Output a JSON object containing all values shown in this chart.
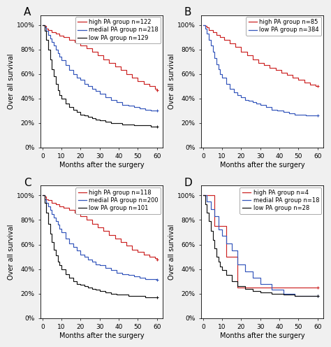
{
  "panels": {
    "A": {
      "label": "A",
      "groups": [
        {
          "name": "high PA group n=122",
          "color": "#cc2222",
          "times": [
            0,
            1,
            2,
            3,
            5,
            7,
            9,
            11,
            14,
            17,
            20,
            23,
            26,
            29,
            32,
            35,
            38,
            41,
            44,
            47,
            50,
            53,
            56,
            59,
            60
          ],
          "survival": [
            1.0,
            0.99,
            0.97,
            0.96,
            0.94,
            0.93,
            0.91,
            0.9,
            0.88,
            0.86,
            0.83,
            0.81,
            0.78,
            0.75,
            0.72,
            0.69,
            0.66,
            0.63,
            0.6,
            0.57,
            0.54,
            0.52,
            0.5,
            0.48,
            0.47
          ]
        },
        {
          "name": "medial PA group n=218",
          "color": "#3355bb",
          "times": [
            0,
            1,
            2,
            3,
            4,
            5,
            6,
            7,
            8,
            9,
            10,
            12,
            14,
            16,
            18,
            20,
            22,
            24,
            26,
            28,
            30,
            33,
            36,
            39,
            42,
            45,
            48,
            51,
            54,
            57,
            60
          ],
          "survival": [
            1.0,
            0.98,
            0.95,
            0.92,
            0.89,
            0.86,
            0.83,
            0.8,
            0.77,
            0.74,
            0.71,
            0.67,
            0.63,
            0.6,
            0.57,
            0.55,
            0.52,
            0.5,
            0.48,
            0.46,
            0.44,
            0.41,
            0.39,
            0.37,
            0.35,
            0.34,
            0.33,
            0.32,
            0.31,
            0.3,
            0.3
          ]
        },
        {
          "name": "low PA group n=129",
          "color": "#111111",
          "times": [
            0,
            1,
            2,
            3,
            4,
            5,
            6,
            7,
            8,
            9,
            10,
            12,
            14,
            16,
            18,
            20,
            22,
            24,
            26,
            28,
            30,
            33,
            36,
            39,
            42,
            45,
            48,
            51,
            54,
            57,
            60
          ],
          "survival": [
            1.0,
            0.95,
            0.88,
            0.8,
            0.72,
            0.64,
            0.58,
            0.52,
            0.47,
            0.43,
            0.4,
            0.36,
            0.33,
            0.31,
            0.29,
            0.27,
            0.26,
            0.25,
            0.24,
            0.23,
            0.22,
            0.21,
            0.2,
            0.2,
            0.19,
            0.19,
            0.18,
            0.18,
            0.18,
            0.17,
            0.17
          ]
        }
      ],
      "ytick_labels": [
        "0%",
        "20%",
        "40%",
        "60%",
        "80%",
        "100%"
      ],
      "yticks": [
        0,
        20,
        40,
        60,
        80,
        100
      ],
      "ylim": [
        0,
        108
      ],
      "xlim": [
        -1,
        63
      ],
      "legend_loc": "upper right"
    },
    "B": {
      "label": "B",
      "groups": [
        {
          "name": "high PA group n=85",
          "color": "#cc2222",
          "times": [
            0,
            1,
            2,
            3,
            5,
            7,
            9,
            11,
            14,
            17,
            20,
            23,
            26,
            29,
            32,
            35,
            38,
            41,
            44,
            47,
            50,
            53,
            56,
            59,
            60
          ],
          "survival": [
            1.0,
            0.99,
            0.98,
            0.96,
            0.94,
            0.92,
            0.9,
            0.88,
            0.85,
            0.82,
            0.78,
            0.75,
            0.72,
            0.69,
            0.67,
            0.65,
            0.63,
            0.61,
            0.59,
            0.57,
            0.55,
            0.53,
            0.51,
            0.5,
            0.5
          ]
        },
        {
          "name": "low PA group n=384",
          "color": "#3355bb",
          "times": [
            0,
            1,
            2,
            3,
            4,
            5,
            6,
            7,
            8,
            9,
            10,
            12,
            14,
            16,
            18,
            20,
            22,
            24,
            26,
            28,
            30,
            33,
            36,
            39,
            42,
            45,
            48,
            51,
            54,
            57,
            60
          ],
          "survival": [
            1.0,
            0.97,
            0.93,
            0.88,
            0.83,
            0.78,
            0.73,
            0.68,
            0.64,
            0.6,
            0.57,
            0.52,
            0.48,
            0.45,
            0.43,
            0.41,
            0.39,
            0.38,
            0.37,
            0.36,
            0.35,
            0.33,
            0.31,
            0.3,
            0.29,
            0.28,
            0.27,
            0.27,
            0.26,
            0.26,
            0.26
          ]
        }
      ],
      "ytick_labels": [
        "0%",
        "20%",
        "40%",
        "60%",
        "80%",
        "100%"
      ],
      "yticks": [
        0,
        20,
        40,
        60,
        80,
        100
      ],
      "ylim": [
        0,
        108
      ],
      "xlim": [
        -1,
        63
      ],
      "legend_loc": "upper right"
    },
    "C": {
      "label": "C",
      "groups": [
        {
          "name": "high PA group n=118",
          "color": "#cc2222",
          "times": [
            0,
            1,
            2,
            3,
            5,
            7,
            9,
            11,
            14,
            17,
            20,
            23,
            26,
            29,
            32,
            35,
            38,
            41,
            44,
            47,
            50,
            53,
            56,
            59,
            60
          ],
          "survival": [
            1.0,
            0.99,
            0.97,
            0.96,
            0.94,
            0.93,
            0.91,
            0.9,
            0.88,
            0.86,
            0.83,
            0.8,
            0.77,
            0.74,
            0.71,
            0.68,
            0.65,
            0.62,
            0.59,
            0.56,
            0.54,
            0.52,
            0.5,
            0.49,
            0.48
          ]
        },
        {
          "name": "medial PA group n=200",
          "color": "#3355bb",
          "times": [
            0,
            1,
            2,
            3,
            4,
            5,
            6,
            7,
            8,
            9,
            10,
            12,
            14,
            16,
            18,
            20,
            22,
            24,
            26,
            28,
            30,
            33,
            36,
            39,
            42,
            45,
            48,
            51,
            54,
            57,
            60
          ],
          "survival": [
            1.0,
            0.97,
            0.94,
            0.91,
            0.88,
            0.85,
            0.82,
            0.79,
            0.76,
            0.73,
            0.7,
            0.65,
            0.61,
            0.58,
            0.55,
            0.52,
            0.5,
            0.48,
            0.46,
            0.44,
            0.43,
            0.41,
            0.39,
            0.37,
            0.36,
            0.35,
            0.34,
            0.33,
            0.32,
            0.32,
            0.31
          ]
        },
        {
          "name": "low PA group n=101",
          "color": "#111111",
          "times": [
            0,
            1,
            2,
            3,
            4,
            5,
            6,
            7,
            8,
            9,
            10,
            12,
            14,
            16,
            18,
            20,
            22,
            24,
            26,
            28,
            30,
            33,
            36,
            39,
            42,
            45,
            48,
            51,
            54,
            57,
            60
          ],
          "survival": [
            1.0,
            0.94,
            0.86,
            0.77,
            0.69,
            0.62,
            0.56,
            0.51,
            0.46,
            0.43,
            0.4,
            0.36,
            0.33,
            0.3,
            0.28,
            0.27,
            0.26,
            0.25,
            0.24,
            0.23,
            0.22,
            0.21,
            0.2,
            0.19,
            0.19,
            0.18,
            0.18,
            0.18,
            0.17,
            0.17,
            0.17
          ]
        }
      ],
      "ytick_labels": [
        "0%",
        "20%",
        "40%",
        "60%",
        "80%",
        "100%"
      ],
      "yticks": [
        0,
        20,
        40,
        60,
        80,
        100
      ],
      "ylim": [
        0,
        108
      ],
      "xlim": [
        -1,
        63
      ],
      "legend_loc": "upper right"
    },
    "D": {
      "label": "D",
      "groups": [
        {
          "name": "high PA group n=4",
          "color": "#cc2222",
          "times": [
            0,
            3,
            6,
            9,
            12,
            15,
            18,
            21,
            60
          ],
          "survival": [
            1.0,
            1.0,
            0.75,
            0.75,
            0.5,
            0.5,
            0.25,
            0.25,
            0.25
          ]
        },
        {
          "name": "medial PA group n=18",
          "color": "#3355bb",
          "times": [
            0,
            2,
            4,
            6,
            8,
            10,
            12,
            15,
            18,
            22,
            26,
            30,
            36,
            42,
            48,
            55,
            60
          ],
          "survival": [
            1.0,
            0.95,
            0.89,
            0.83,
            0.72,
            0.67,
            0.61,
            0.55,
            0.44,
            0.38,
            0.33,
            0.28,
            0.23,
            0.2,
            0.18,
            0.18,
            0.18
          ]
        },
        {
          "name": "low PA group n=28",
          "color": "#111111",
          "times": [
            0,
            1,
            2,
            3,
            4,
            5,
            6,
            7,
            8,
            9,
            10,
            12,
            15,
            18,
            22,
            26,
            30,
            36,
            42,
            48,
            55,
            60
          ],
          "survival": [
            1.0,
            0.93,
            0.86,
            0.79,
            0.71,
            0.64,
            0.57,
            0.5,
            0.46,
            0.42,
            0.39,
            0.35,
            0.3,
            0.26,
            0.24,
            0.22,
            0.21,
            0.2,
            0.19,
            0.18,
            0.18,
            0.18
          ]
        }
      ],
      "ytick_labels": [
        "0%",
        "20%",
        "40%",
        "60%",
        "80%",
        "100%"
      ],
      "yticks": [
        0,
        20,
        40,
        60,
        80,
        100
      ],
      "ylim": [
        0,
        108
      ],
      "xlim": [
        -1,
        63
      ],
      "legend_loc": "upper right"
    }
  },
  "xlabel": "Months after the surgery",
  "ylabel": "Over all survival",
  "xticks": [
    0,
    10,
    20,
    30,
    40,
    50,
    60
  ],
  "tick_fontsize": 6.5,
  "label_fontsize": 7,
  "legend_fontsize": 6,
  "panel_label_fontsize": 11,
  "linewidth": 0.85,
  "figure_facecolor": "#f0f0f0"
}
